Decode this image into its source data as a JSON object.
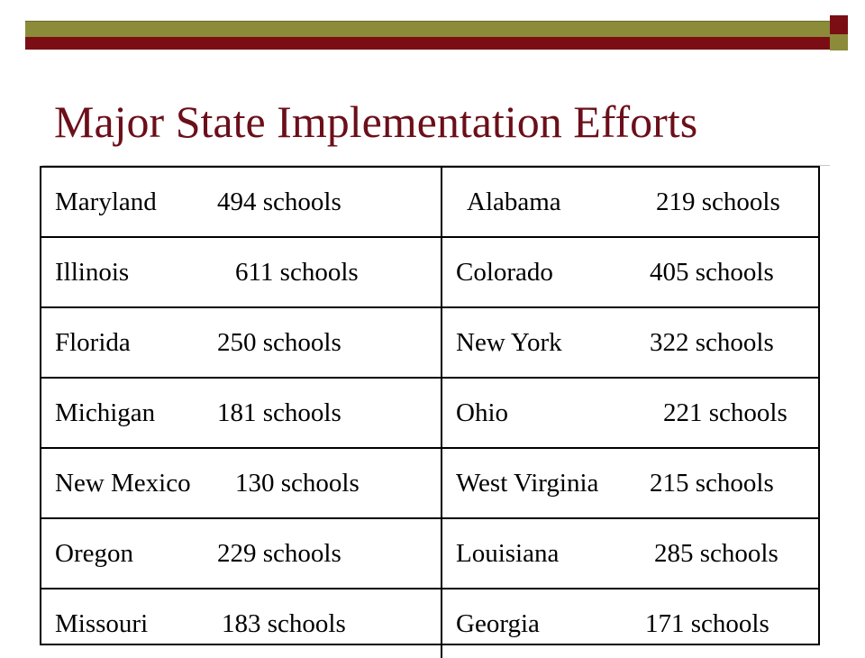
{
  "title": "Major State Implementation Efforts",
  "colors": {
    "title": "#6b0f1a",
    "accent_olive": "#8b8b3a",
    "accent_maroon": "#7b0e14"
  },
  "rows": [
    {
      "left": {
        "state": "Maryland",
        "schools": "494 schools"
      },
      "right": {
        "state": "Alabama",
        "schools": "219 schools"
      }
    },
    {
      "left": {
        "state": "Illinois",
        "schools": "611 schools"
      },
      "right": {
        "state": "Colorado",
        "schools": "405 schools"
      }
    },
    {
      "left": {
        "state": "Florida",
        "schools": "250 schools"
      },
      "right": {
        "state": "New York",
        "schools": "322 schools"
      }
    },
    {
      "left": {
        "state": "Michigan",
        "schools": "181 schools"
      },
      "right": {
        "state": "Ohio",
        "schools": "221 schools"
      }
    },
    {
      "left": {
        "state": "New Mexico",
        "schools": "130 schools"
      },
      "right": {
        "state": "West Virginia",
        "schools": "215 schools"
      }
    },
    {
      "left": {
        "state": "Oregon",
        "schools": "229 schools"
      },
      "right": {
        "state": "Louisiana",
        "schools": "285 schools"
      }
    },
    {
      "left": {
        "state": "Missouri",
        "schools": "183 schools"
      },
      "right": {
        "state": "Georgia",
        "schools": "171 schools"
      }
    }
  ]
}
